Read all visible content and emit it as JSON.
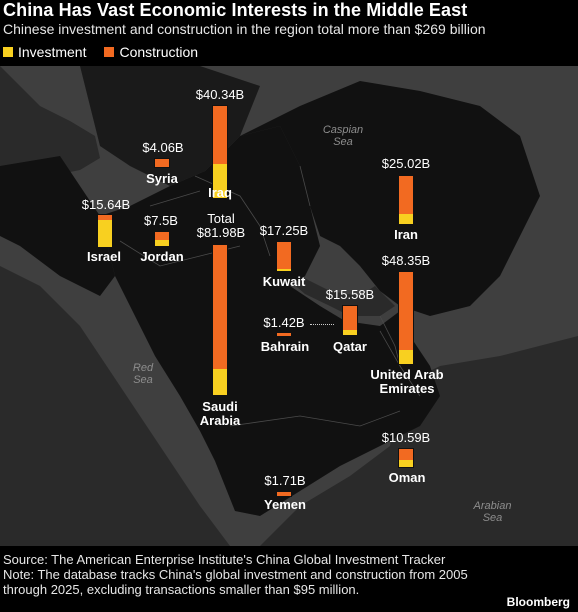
{
  "title": "China Has Vast Economic Interests in the Middle East",
  "subtitle": "Chinese investment and construction in the region total more than $269 billion",
  "legend": {
    "investment": "Investment",
    "construction": "Construction",
    "investment_color": "#f8d020",
    "construction_color": "#f26a21"
  },
  "seas": {
    "caspian": "Caspian Sea",
    "red": "Red Sea",
    "arabian": "Arabian Sea"
  },
  "chart_data": {
    "type": "bar",
    "stacked": true,
    "series_order": [
      "Investment",
      "Construction"
    ],
    "countries": [
      {
        "name": "Iraq",
        "label": "$40.34B",
        "total": 40.34,
        "investment_share": 0.37
      },
      {
        "name": "Syria",
        "label": "$4.06B",
        "total": 4.06,
        "investment_share": 0.0
      },
      {
        "name": "Israel",
        "label": "$15.64B",
        "total": 15.64,
        "investment_share": 0.85
      },
      {
        "name": "Jordan",
        "label": "$7.5B",
        "total": 7.5,
        "investment_share": 0.4
      },
      {
        "name": "Saudi Arabia",
        "label": "Total $81.98B",
        "total": 81.98,
        "investment_share": 0.17
      },
      {
        "name": "Kuwait",
        "label": "$17.25B",
        "total": 17.25,
        "investment_share": 0.08
      },
      {
        "name": "Bahrain",
        "label": "$1.42B",
        "total": 1.42,
        "investment_share": 0.0
      },
      {
        "name": "Qatar",
        "label": "$15.58B",
        "total": 15.58,
        "investment_share": 0.16
      },
      {
        "name": "Iran",
        "label": "$25.02B",
        "total": 25.02,
        "investment_share": 0.2
      },
      {
        "name": "United Arab Emirates",
        "label": "$48.35B",
        "total": 48.35,
        "investment_share": 0.15
      },
      {
        "name": "Oman",
        "label": "$10.59B",
        "total": 10.59,
        "investment_share": 0.4
      },
      {
        "name": "Yemen",
        "label": "$1.71B",
        "total": 1.71,
        "investment_share": 0.0
      }
    ]
  },
  "footer": {
    "source": "Source: The American Enterprise Institute's China Global Investment Tracker",
    "note": "Note: The database tracks China's global investment and construction from 2005 through 2025, excluding transactions smaller than $95 million."
  },
  "brand": "Bloomberg"
}
